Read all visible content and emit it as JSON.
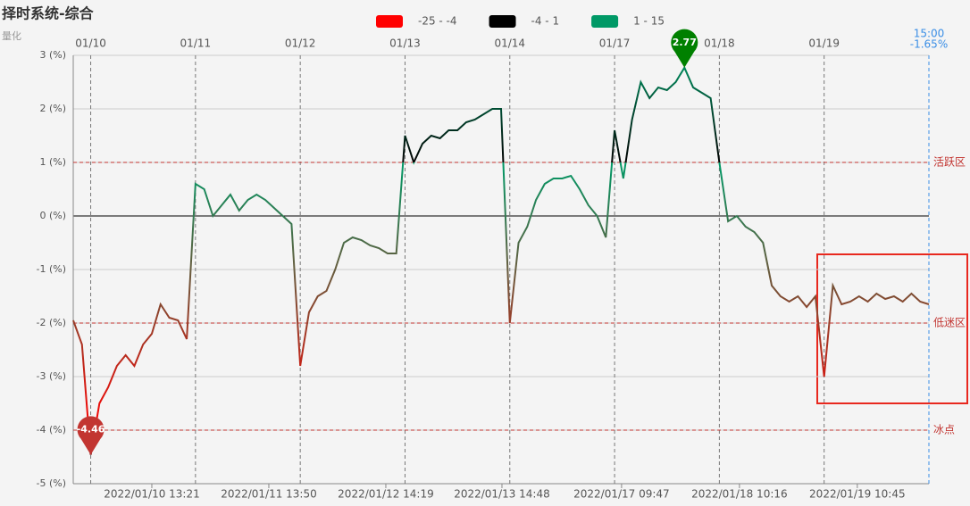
{
  "chart_data": {
    "type": "line",
    "title": "择时系统-综合",
    "ylabel": "量化",
    "xlim": [
      0,
      196
    ],
    "ylim": [
      -5,
      3
    ],
    "yticks": [
      {
        "value": -5,
        "label": "-5 (%)"
      },
      {
        "value": -4,
        "label": "-4 (%)"
      },
      {
        "value": -3,
        "label": "-3 (%)"
      },
      {
        "value": -2,
        "label": "-2 (%)"
      },
      {
        "value": -1,
        "label": "-1 (%)"
      },
      {
        "value": 0,
        "label": "0 (%)"
      },
      {
        "value": 1,
        "label": "1 (%)"
      },
      {
        "value": 2,
        "label": "2 (%)"
      },
      {
        "value": 3,
        "label": "3 (%)"
      }
    ],
    "xticks": [
      {
        "value": 4,
        "label": "01/10"
      },
      {
        "value": 28,
        "label": "01/11"
      },
      {
        "value": 52,
        "label": "01/12"
      },
      {
        "value": 76,
        "label": "01/13"
      },
      {
        "value": 100,
        "label": "01/14"
      },
      {
        "value": 124,
        "label": "01/17"
      },
      {
        "value": 148,
        "label": "01/18"
      },
      {
        "value": 172,
        "label": "01/19"
      }
    ],
    "xticks_bottom": [
      {
        "value": 18,
        "label": "2022/01/10 13:21"
      },
      {
        "value": 44.8,
        "label": "2022/01/11 13:50"
      },
      {
        "value": 71.6,
        "label": "2022/01/12 14:19"
      },
      {
        "value": 98.2,
        "label": "2022/01/13 14:48"
      },
      {
        "value": 125.6,
        "label": "2022/01/17 09:47"
      },
      {
        "value": 152.6,
        "label": "2022/01/18 10:16"
      },
      {
        "value": 179.6,
        "label": "2022/01/19 10:45"
      }
    ],
    "now_marker": {
      "x": 196,
      "time": "15:00",
      "change": "-1.65%",
      "color": "#3a8ee6"
    },
    "pieces": [
      {
        "min": -25,
        "max": -4,
        "label": "-25 - -4",
        "color": "#ff0000"
      },
      {
        "min": -4,
        "max": 1,
        "label": "-4 - 1",
        "color": "#000000"
      },
      {
        "min": 1,
        "max": 15,
        "label": "1 - 15",
        "color": "#009966"
      }
    ],
    "mark_lines": [
      {
        "value": 1,
        "label": "活跃区"
      },
      {
        "value": -2,
        "label": "低迷区"
      },
      {
        "value": -4,
        "label": "冰点"
      }
    ],
    "mark_line_color": "#c23531",
    "max_pin_color": "#008000",
    "min_pin_color": "#c23531",
    "grid": true,
    "series": [
      {
        "name": "综合",
        "x": [
          0,
          2,
          4,
          6,
          8,
          10,
          12,
          14,
          16,
          18,
          20,
          22,
          24,
          26,
          28,
          30,
          32,
          34,
          36,
          38,
          40,
          42,
          44,
          46,
          48,
          50,
          52,
          54,
          56,
          58,
          60,
          62,
          64,
          66,
          68,
          70,
          72,
          74,
          76,
          78,
          80,
          82,
          84,
          86,
          88,
          90,
          92,
          94,
          96,
          98,
          100,
          102,
          104,
          106,
          108,
          110,
          112,
          114,
          116,
          118,
          120,
          122,
          124,
          126,
          128,
          130,
          132,
          134,
          136,
          138,
          140,
          142,
          144,
          146,
          148,
          150,
          152,
          154,
          156,
          158,
          160,
          162,
          164,
          166,
          168,
          170,
          172,
          174,
          176,
          178,
          180,
          182,
          184,
          186,
          188,
          190,
          192,
          194,
          196
        ],
        "values": [
          -1.95,
          -2.4,
          -4.46,
          -3.5,
          -3.2,
          -2.8,
          -2.6,
          -2.8,
          -2.4,
          -2.2,
          -1.65,
          -1.9,
          -1.95,
          -2.3,
          0.6,
          0.5,
          0.0,
          0.2,
          0.4,
          0.1,
          0.3,
          0.4,
          0.3,
          0.15,
          0.0,
          -0.15,
          -2.8,
          -1.8,
          -1.5,
          -1.4,
          -1.0,
          -0.5,
          -0.4,
          -0.45,
          -0.55,
          -0.6,
          -0.7,
          -0.7,
          1.5,
          1.0,
          1.35,
          1.5,
          1.45,
          1.6,
          1.6,
          1.75,
          1.8,
          1.9,
          2.0,
          2.0,
          -2.0,
          -0.5,
          -0.2,
          0.3,
          0.6,
          0.7,
          0.7,
          0.75,
          0.5,
          0.2,
          0.0,
          -0.4,
          1.6,
          0.7,
          1.8,
          2.5,
          2.2,
          2.4,
          2.35,
          2.5,
          2.77,
          2.4,
          2.3,
          2.2,
          1.0,
          -0.1,
          0.0,
          -0.2,
          -0.3,
          -0.5,
          -1.3,
          -1.5,
          -1.6,
          -1.5,
          -1.7,
          -1.5,
          -3.0,
          -1.3,
          -1.65,
          -1.6,
          -1.5,
          -1.6,
          -1.45,
          -1.55,
          -1.5,
          -1.6,
          -1.45,
          -1.6,
          -1.65
        ]
      }
    ]
  }
}
